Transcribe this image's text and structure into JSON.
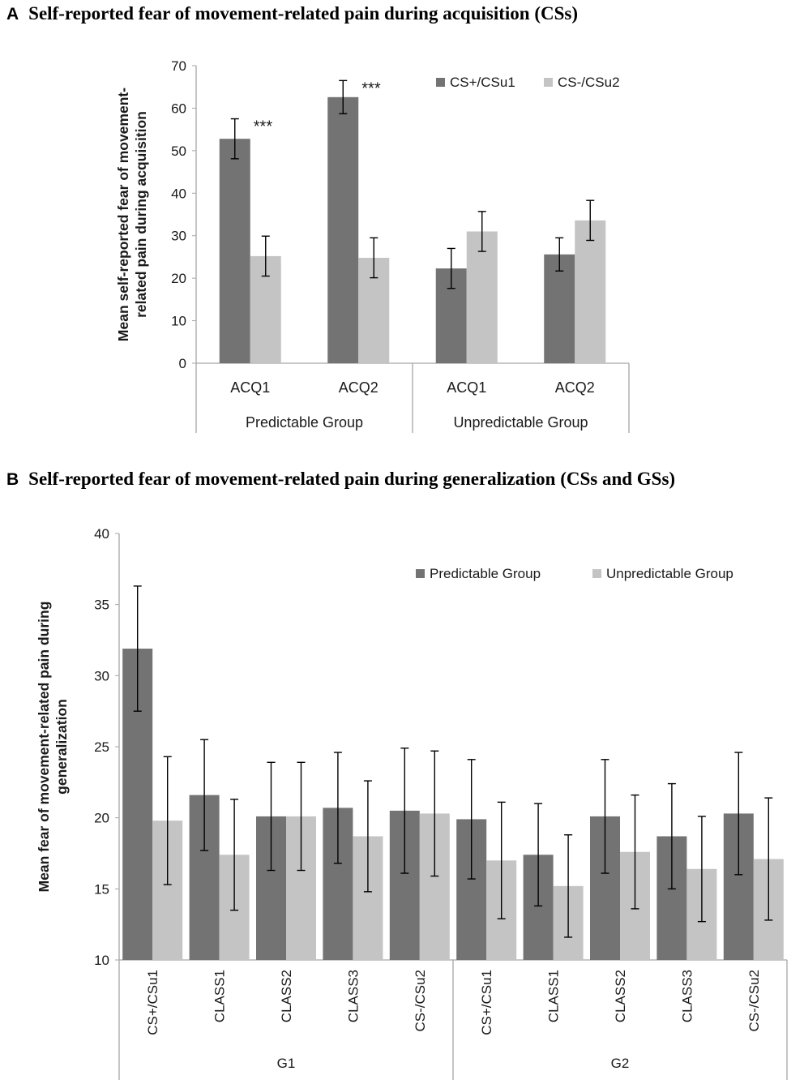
{
  "panels": {
    "a": {
      "letter": "A",
      "title": "Self-reported fear of movement-related pain during acquisition (CSs)"
    },
    "b": {
      "letter": "B",
      "title": "Self-reported fear of movement-related pain during generalization (CSs and GSs)"
    }
  },
  "colors": {
    "dark_bar": "#737373",
    "light_bar": "#c4c4c4",
    "axis": "#a6a6a6",
    "text": "#1a1a1a"
  },
  "chart_data": [
    {
      "type": "bar",
      "title": "Self-reported fear of movement-related pain during acquisition (CSs)",
      "ylabel_lines": [
        "Mean self-reported  fear of movement-",
        "related pain during acquisition"
      ],
      "ylim": [
        0,
        70
      ],
      "yticks": [
        0,
        10,
        20,
        30,
        40,
        50,
        60,
        70
      ],
      "categories": [
        "ACQ1",
        "ACQ2",
        "ACQ1",
        "ACQ2"
      ],
      "groups": [
        {
          "label": "Predictable Group",
          "span": 2
        },
        {
          "label": "Unpredictable Group",
          "span": 2
        }
      ],
      "series": [
        {
          "name": "CS+/CSu1",
          "color": "#737373",
          "values": [
            52.8,
            62.6,
            22.3,
            25.6
          ],
          "errors": [
            4.7,
            3.9,
            4.7,
            3.9
          ]
        },
        {
          "name": "CS-/CSu2",
          "color": "#c4c4c4",
          "values": [
            25.2,
            24.8,
            31.0,
            33.6
          ],
          "errors": [
            4.7,
            4.7,
            4.7,
            4.7
          ]
        }
      ],
      "annotations": [
        {
          "category_index": 0,
          "text": "***"
        },
        {
          "category_index": 1,
          "text": "***"
        }
      ],
      "legend_position": "top-right"
    },
    {
      "type": "bar",
      "title": "Self-reported fear of movement-related pain during generalization (CSs and GSs)",
      "ylabel_lines": [
        "Mean fear of movement-related pain during",
        "generalization"
      ],
      "ylim": [
        10,
        40
      ],
      "yticks": [
        10,
        15,
        20,
        25,
        30,
        35,
        40
      ],
      "categories": [
        "CS+/CSu1",
        "CLASS1",
        "CLASS2",
        "CLASS3",
        "CS-/CSu2",
        "CS+/CSu1",
        "CLASS1",
        "CLASS2",
        "CLASS3",
        "CS-/CSu2"
      ],
      "groups": [
        {
          "label": "G1",
          "span": 5
        },
        {
          "label": "G2",
          "span": 5
        }
      ],
      "series": [
        {
          "name": "Predictable Group",
          "color": "#737373",
          "values": [
            31.9,
            21.6,
            20.1,
            20.7,
            20.5,
            19.9,
            17.4,
            20.1,
            18.7,
            20.3
          ],
          "errors": [
            4.4,
            3.9,
            3.8,
            3.9,
            4.4,
            4.2,
            3.6,
            4.0,
            3.7,
            4.3
          ]
        },
        {
          "name": "Unpredictable Group",
          "color": "#c4c4c4",
          "values": [
            19.8,
            17.4,
            20.1,
            18.7,
            20.3,
            17.0,
            15.2,
            17.6,
            16.4,
            17.1
          ],
          "errors": [
            4.5,
            3.9,
            3.8,
            3.9,
            4.4,
            4.1,
            3.6,
            4.0,
            3.7,
            4.3
          ]
        }
      ],
      "annotations": [],
      "legend_position": "top-right"
    }
  ]
}
